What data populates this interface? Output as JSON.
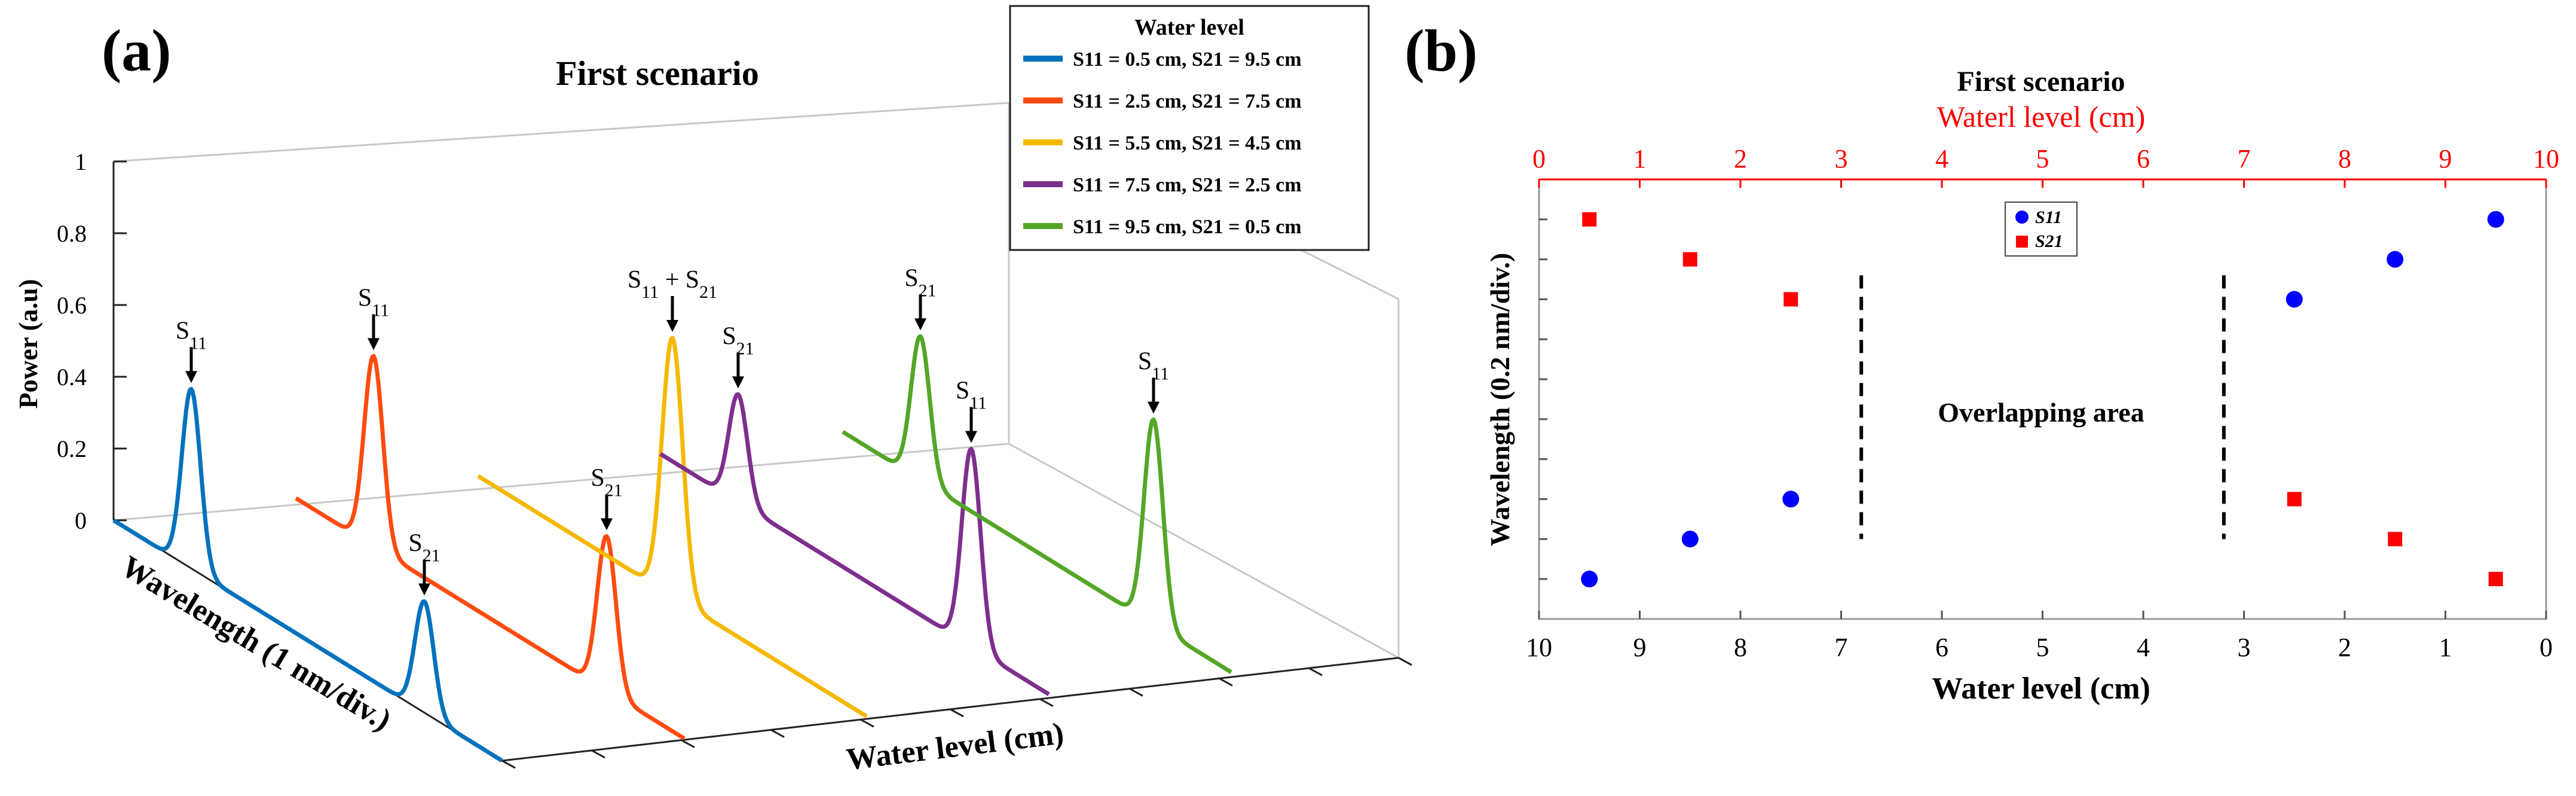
{
  "colors": {
    "s11_05": "#0072bd",
    "s11_25": "#ff4b0f",
    "s11_55": "#f5b800",
    "s11_75": "#7e2f8e",
    "s11_95": "#54a626",
    "red_axis": "#ff0000",
    "s11_marker": "#0000ff",
    "s21_marker": "#ff0000"
  },
  "chart_data": [
    {
      "type": "line",
      "panel_label": "(a)",
      "title": "First scenario",
      "ylabel": "Power (a.u)",
      "xlabel": "Water level (cm)",
      "zlabel": "Wavelength (1 nm/div.)",
      "ylim": [
        0,
        1
      ],
      "yticks": [
        "0",
        "0.2",
        "0.4",
        "0.6",
        "0.8",
        "1"
      ],
      "grid": false,
      "legend": {
        "title": "Water  level",
        "placement": "top-right",
        "entries": [
          "S11 = 0.5 cm, S21 = 9.5 cm",
          "S11 = 2.5 cm, S21 = 7.5 cm",
          "S11 = 5.5 cm, S21 = 4.5 cm",
          "S11 = 7.5 cm, S21 = 2.5 cm",
          "S11 = 9.5 cm, S21 = 0.5 cm"
        ]
      },
      "series": [
        {
          "name": "S11 = 0.5 cm, S21 = 9.5 cm",
          "s11_power": 0.5,
          "s21_power": 0.31,
          "s11_first": true
        },
        {
          "name": "S11 = 2.5 cm, S21 = 7.5 cm",
          "s11_power": 0.53,
          "s21_power": 0.43,
          "s11_first": true
        },
        {
          "name": "S11 = 5.5 cm, S21 = 4.5 cm",
          "combined_power": 0.72
        },
        {
          "name": "S11 = 7.5 cm, S21 = 2.5 cm",
          "s11_power": 0.55,
          "s21_power": 0.3,
          "s11_first": false
        },
        {
          "name": "S11 = 9.5 cm, S21 = 0.5 cm",
          "s11_power": 0.57,
          "s21_power": 0.4,
          "s11_first": false
        }
      ],
      "annotations": [
        "S11",
        "S21",
        "S21",
        "S11",
        "S11 + S21",
        "S21",
        "S11",
        "S21",
        "S11"
      ]
    },
    {
      "type": "scatter",
      "panel_label": "(b)",
      "title": "First scenario",
      "xlabel": "Water  level (cm)",
      "x2label": "Waterl level (cm)",
      "ylabel": "Wavelength (0.2 nm/div.)",
      "xlim": [
        10,
        0
      ],
      "x2lim": [
        0,
        10
      ],
      "xticks": [
        10,
        9,
        8,
        7,
        6,
        5,
        4,
        3,
        2,
        1,
        0
      ],
      "annotation": "Overlapping area",
      "divider_positions": [
        6.8,
        3.2
      ],
      "legend": {
        "placement": "top-center",
        "entries": [
          "S11",
          "S21"
        ]
      },
      "ylim": [
        0,
        11
      ],
      "series": [
        {
          "name": "S11",
          "marker": "circle",
          "x": [
            9.5,
            8.5,
            7.5,
            2.5,
            1.5,
            0.5
          ],
          "y": [
            1,
            2,
            3,
            8,
            9,
            10
          ]
        },
        {
          "name": "S21",
          "marker": "square",
          "x": [
            9.5,
            8.5,
            7.5,
            2.5,
            1.5,
            0.5
          ],
          "y": [
            10,
            9,
            8,
            3,
            2,
            1
          ]
        }
      ]
    }
  ]
}
